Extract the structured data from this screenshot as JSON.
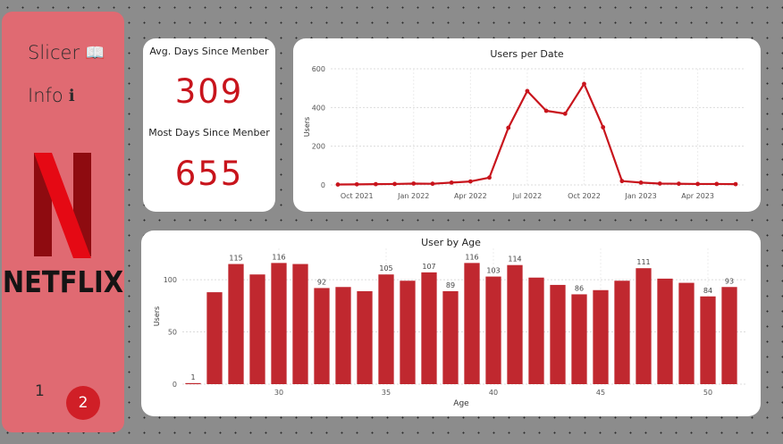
{
  "sidebar": {
    "items": [
      {
        "label": "Slicer",
        "icon": "book-icon",
        "glyph": "📖"
      },
      {
        "label": "Info",
        "icon": "info-icon",
        "glyph": "ℹ"
      }
    ],
    "brand": "NETFLIX",
    "pages": [
      "1",
      "2"
    ],
    "active_page": "2"
  },
  "kpi": {
    "avg_label": "Avg. Days Since Menber",
    "avg_value": "309",
    "max_label": "Most Days Since Menber",
    "max_value": "655"
  },
  "colors": {
    "accent": "#c8141c",
    "bar": "#c0282f",
    "sidebar": "#e06a72"
  },
  "chart_data": [
    {
      "type": "line",
      "title": "Users per Date",
      "ylabel": "Users",
      "xlabel": "",
      "ylim": [
        0,
        600
      ],
      "yticks": [
        0,
        200,
        400,
        600
      ],
      "xticks": [
        {
          "label": "Oct 2021",
          "index": 1
        },
        {
          "label": "Jan 2022",
          "index": 4
        },
        {
          "label": "Apr 2022",
          "index": 7
        },
        {
          "label": "Jul 2022",
          "index": 10
        },
        {
          "label": "Oct 2022",
          "index": 13
        },
        {
          "label": "Jan 2023",
          "index": 16
        },
        {
          "label": "Apr 2023",
          "index": 19
        }
      ],
      "x": [
        "Sep 2021",
        "Oct 2021",
        "Nov 2021",
        "Dec 2021",
        "Jan 2022",
        "Feb 2022",
        "Mar 2022",
        "Apr 2022",
        "May 2022",
        "Jun 2022",
        "Jul 2022",
        "Aug 2022",
        "Sep 2022",
        "Oct 2022",
        "Nov 2022",
        "Dec 2022",
        "Jan 2023",
        "Feb 2023",
        "Mar 2023",
        "Apr 2023",
        "May 2023",
        "Jun 2023"
      ],
      "values": [
        2,
        3,
        4,
        5,
        7,
        6,
        12,
        18,
        38,
        295,
        485,
        383,
        368,
        522,
        298,
        20,
        12,
        7,
        6,
        5,
        5,
        4
      ]
    },
    {
      "type": "bar",
      "title": "User by Age",
      "xlabel": "Age",
      "ylabel": "Users",
      "ylim": [
        0,
        130
      ],
      "yticks": [
        0,
        50,
        100
      ],
      "xticks": [
        30,
        35,
        40,
        45,
        50
      ],
      "categories": [
        26,
        27,
        28,
        29,
        30,
        31,
        32,
        33,
        34,
        35,
        36,
        37,
        38,
        39,
        40,
        41,
        42,
        43,
        44,
        45,
        46,
        47,
        48,
        49,
        50,
        51
      ],
      "values": [
        1,
        88,
        115,
        105,
        116,
        115,
        92,
        93,
        89,
        105,
        99,
        107,
        89,
        116,
        103,
        114,
        102,
        95,
        86,
        90,
        99,
        111,
        101,
        97,
        84,
        93
      ],
      "data_labels": {
        "0": "1",
        "2": "115",
        "4": "116",
        "6": "92",
        "9": "105",
        "11": "107",
        "12": "89",
        "13": "116",
        "14": "103",
        "15": "114",
        "18": "86",
        "21": "111",
        "24": "84",
        "25": "93"
      }
    }
  ]
}
